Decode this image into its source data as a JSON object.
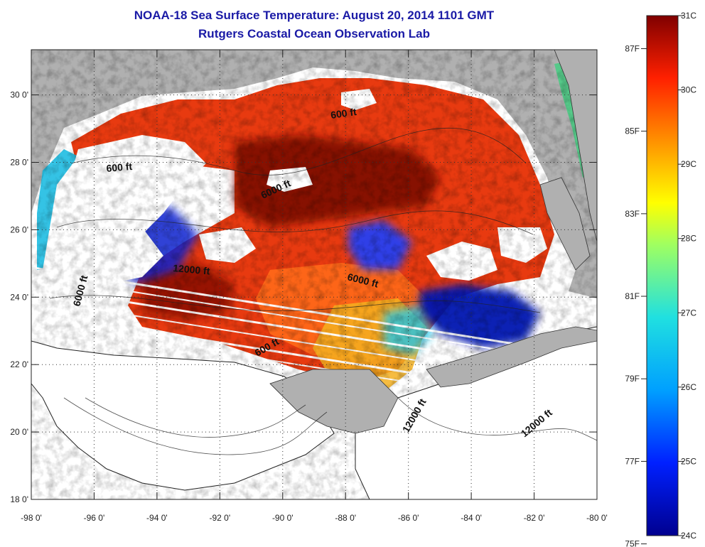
{
  "title": {
    "line1": "NOAA-18 Sea Surface Temperature:  August 20, 2014 1101 GMT",
    "line2": "Rutgers Coastal Ocean Observation Lab"
  },
  "axes": {
    "x_ticks": [
      "-98 0'",
      "-96 0'",
      "-94 0'",
      "-92 0'",
      "-90 0'",
      "-88 0'",
      "-86 0'",
      "-84 0'",
      "-82 0'",
      "-80 0'"
    ],
    "y_ticks": [
      "18 0'",
      "20 0'",
      "22 0'",
      "24 0'",
      "26 0'",
      "28 0'",
      "30 0'"
    ]
  },
  "contour_labels": [
    "600 ft",
    "600 ft",
    "6000 ft",
    "12000 ft",
    "6000 ft",
    "6000 ft",
    "600 ft",
    "12000 ft",
    "12000 ft"
  ],
  "colorbar": {
    "celsius": [
      "31C",
      "30C",
      "29C",
      "28C",
      "27C",
      "26C",
      "25C",
      "24C"
    ],
    "fahrenheit": [
      "87F",
      "85F",
      "83F",
      "81F",
      "79F",
      "77F",
      "75F"
    ],
    "range_c": [
      24,
      31
    ]
  },
  "colors": {
    "land": "#b0b0b0",
    "nodata": "#ffffff",
    "title": "#1a1aa6",
    "hot": "#7a0000",
    "warm": "#e83010",
    "mid": "#f0a020",
    "cool": "#20c0e0",
    "cold": "#0010a0"
  }
}
